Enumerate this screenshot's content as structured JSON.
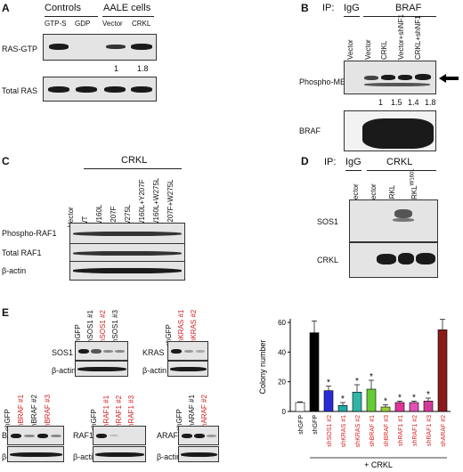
{
  "panelA": {
    "label": "A",
    "group_controls": "Controls",
    "group_aale": "AALE cells",
    "lanes": [
      "GTP-S",
      "GDP",
      "Vector",
      "CRKL"
    ],
    "row1": "RAS-GTP",
    "row2": "Total RAS",
    "quant": [
      "1",
      "1.8"
    ]
  },
  "panelB": {
    "label": "B",
    "ip_label": "IP:",
    "ip_igg": "IgG",
    "ip_braf": "BRAF",
    "lanes": [
      "Vector",
      "Vector",
      "CRKL",
      "Vector+shNF1",
      "CRKL+shNF1"
    ],
    "row1": "Phospho-MEK",
    "row2": "BRAF",
    "quant": [
      "1",
      "1.5",
      "1.4",
      "1.8"
    ]
  },
  "panelC": {
    "label": "C",
    "group": "CRKL",
    "lanes": [
      "Vector",
      "WT",
      "W160L",
      "Y207F",
      "W275L",
      "W160L+Y207F",
      "W160L+W275L",
      "Y207F+W275L"
    ],
    "rows": [
      "Phospho-RAF1",
      "Total RAF1",
      "β-actin"
    ]
  },
  "panelD": {
    "label": "D",
    "ip_label": "IP:",
    "ip_igg": "IgG",
    "ip_crkl": "CRKL",
    "lanes": [
      "Vector",
      "Vector",
      "CRKL",
      "CRKL"
    ],
    "lane4_sup": "W160L",
    "rows": [
      "SOS1",
      "CRKL"
    ]
  },
  "panelE": {
    "label": "E",
    "sos1": {
      "lanes": [
        "shGFP",
        "shSOS1 #1",
        "shSOS1 #2",
        "shSOS1 #3"
      ],
      "row": "SOS1",
      "actin": "β-actin"
    },
    "kras": {
      "lanes": [
        "shGFP",
        "shKRAS #1",
        "shKRAS #2"
      ],
      "row": "KRAS",
      "actin": "β-actin"
    },
    "braf": {
      "lanes": [
        "shGFP",
        "shBRAF #1",
        "shBRAF #2",
        "shBRAF #3"
      ],
      "row": "BRAF",
      "actin": "β-actin"
    },
    "raf1": {
      "lanes": [
        "shGFP",
        "shRAF1 #1",
        "shRAF1 #2",
        "shRAF1 #3"
      ],
      "row": "RAF1",
      "actin": "β-actin"
    },
    "araf": {
      "lanes": [
        "shGFP",
        "shARAF #1",
        "shARAF #2"
      ],
      "row": "ARAF",
      "actin": "β-actin"
    },
    "plus_crkl": "+ CRKL"
  },
  "chart_data": {
    "type": "bar",
    "ylabel": "Colony number",
    "ylim": [
      0,
      60
    ],
    "yticks": [
      0,
      20,
      40,
      60
    ],
    "categories": [
      "shGFP",
      "shGFP",
      "shSOS1 #2",
      "shKRAS #1",
      "shKRAS #2",
      "shBRAF #1",
      "shBRAF #3",
      "shRAF1 #1",
      "shRAF1 #2",
      "shRAF1 #3",
      "shARAF #2"
    ],
    "values": [
      6,
      53,
      14,
      4,
      13,
      15,
      3,
      6,
      6,
      7,
      55
    ],
    "errors": [
      0.5,
      8,
      3,
      2,
      5,
      6,
      1.5,
      1,
      1,
      2,
      7
    ],
    "colors": [
      "#ffffff",
      "#000000",
      "#2b2bd6",
      "#1fa9a9",
      "#2fb6a8",
      "#66cc33",
      "#9ccc33",
      "#e0349a",
      "#e052b3",
      "#d23a9a",
      "#8b1a1a"
    ],
    "significant": [
      false,
      false,
      true,
      true,
      true,
      true,
      true,
      true,
      true,
      true,
      false
    ],
    "star": "*"
  }
}
